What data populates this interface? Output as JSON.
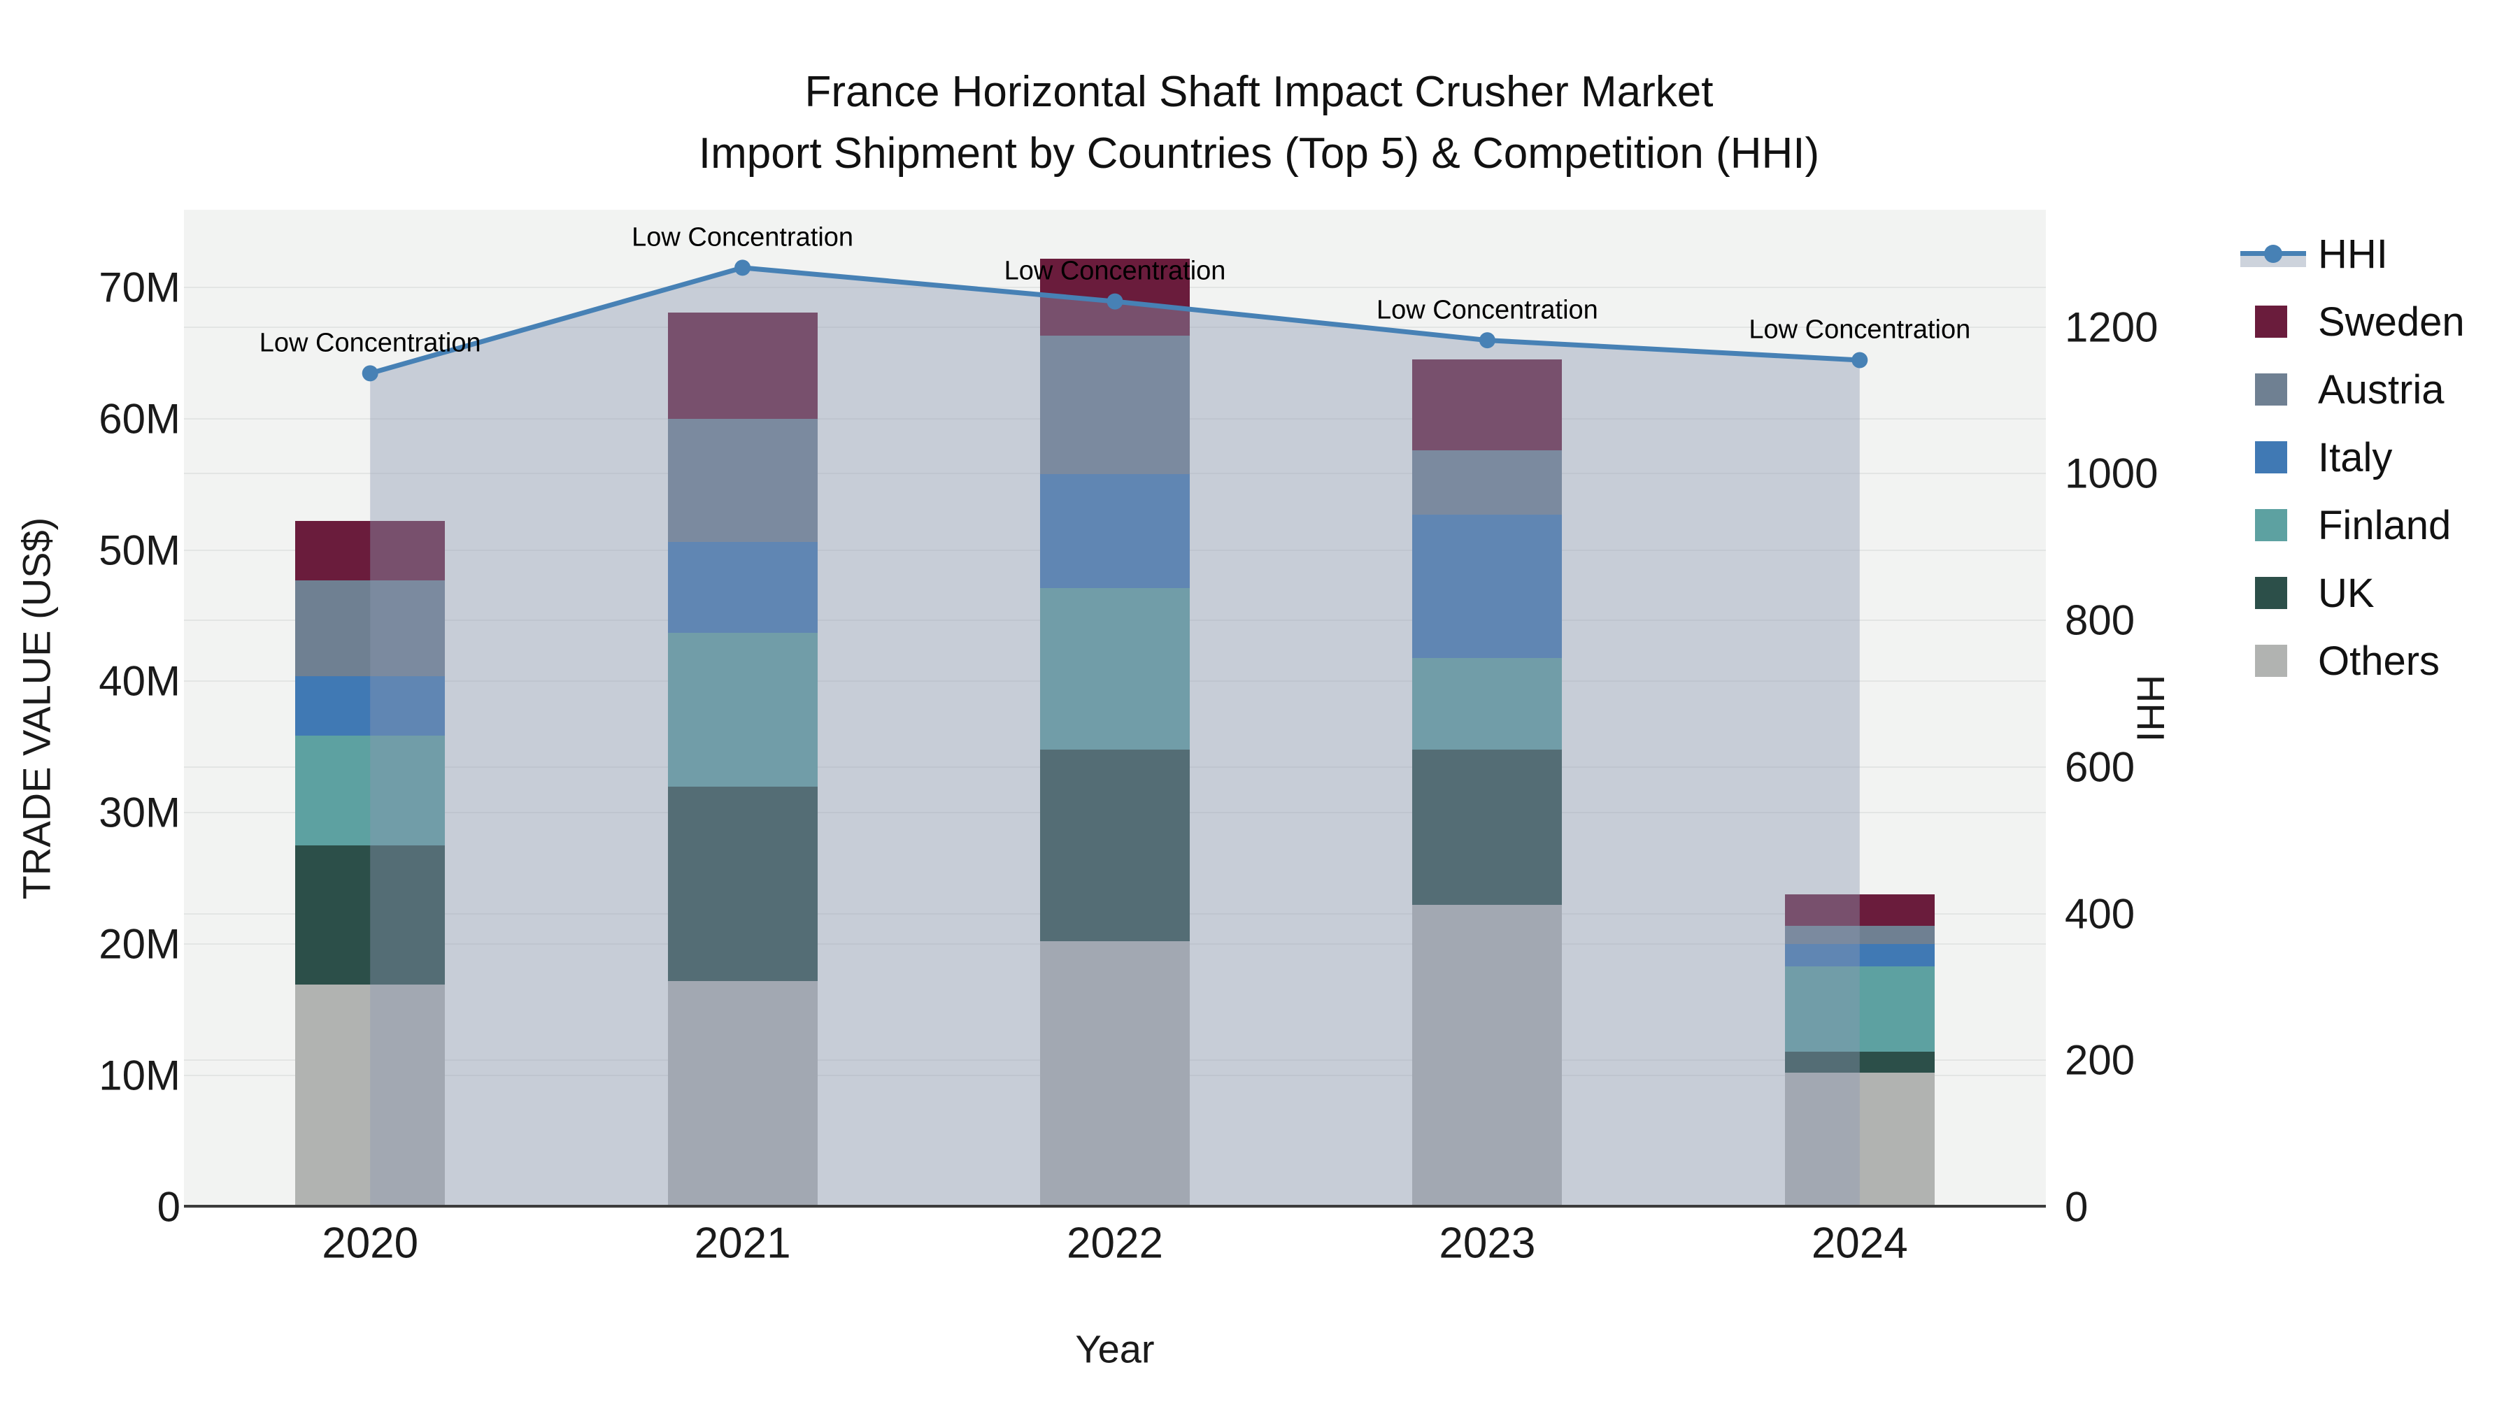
{
  "title": {
    "line1": "France Horizontal Shaft Impact Crusher Market",
    "line2": "Import Shipment by Countries (Top 5) & Competition (HHI)"
  },
  "chart_data": {
    "type": "combo: stacked bar + line(area)",
    "title_line1": "France Horizontal Shaft Impact Crusher Market",
    "title_line2": "Import Shipment by Countries (Top 5) & Competition (HHI)",
    "categories": [
      "2020",
      "2021",
      "2022",
      "2023",
      "2024"
    ],
    "series": [
      {
        "name": "Others",
        "color": "#b1b3b1",
        "values": [
          16.9,
          17.2,
          20.2,
          23.0,
          10.2
        ]
      },
      {
        "name": "UK",
        "color": "#2c4f49",
        "values": [
          10.6,
          14.8,
          14.6,
          11.8,
          1.6
        ]
      },
      {
        "name": "Finland",
        "color": "#5da1a1",
        "values": [
          8.4,
          11.7,
          12.3,
          7.0,
          6.5
        ]
      },
      {
        "name": "Italy",
        "color": "#4079b4",
        "values": [
          4.5,
          6.9,
          8.7,
          10.9,
          1.7
        ]
      },
      {
        "name": "Austria",
        "color": "#6f8092",
        "values": [
          7.3,
          9.4,
          10.5,
          4.9,
          1.4
        ]
      },
      {
        "name": "Sweden",
        "color": "#6a1c3c",
        "values": [
          4.5,
          8.1,
          5.9,
          6.9,
          2.4
        ]
      }
    ],
    "stack_order": "bottom to top: Others, UK, Finland, Italy, Austria, Sweden",
    "bar_totals_musd": [
      52.2,
      68.1,
      72.2,
      64.5,
      23.8
    ],
    "hhi_line": {
      "name": "HHI",
      "color": "#4781b5",
      "area_fill": "rgba(140,152,178,0.42)",
      "values": [
        1137,
        1281,
        1235,
        1182,
        1155
      ]
    },
    "annotations": [
      "Low Concentration",
      "Low Concentration",
      "Low Concentration",
      "Low Concentration",
      "Low Concentration"
    ],
    "axes": {
      "x": {
        "title": "Year"
      },
      "y_left": {
        "title": "TRADE VALUE (US$)",
        "range": [
          0,
          75.9
        ],
        "tick_values": [
          0,
          10,
          20,
          30,
          40,
          50,
          60,
          70
        ],
        "tick_labels": [
          "0",
          "10M",
          "20M",
          "30M",
          "40M",
          "50M",
          "60M",
          "70M"
        ]
      },
      "y_right": {
        "title": "HHI",
        "range": [
          0,
          1360
        ],
        "tick_values": [
          0,
          200,
          400,
          600,
          800,
          1000,
          1200
        ],
        "tick_labels": [
          "0",
          "200",
          "400",
          "600",
          "800",
          "1000",
          "1200"
        ]
      }
    },
    "legend": [
      {
        "id": "hhi",
        "label": "HHI",
        "kind": "line"
      },
      {
        "id": "sweden",
        "label": "Sweden",
        "kind": "swatch",
        "color": "#6a1c3c"
      },
      {
        "id": "austria",
        "label": "Austria",
        "kind": "swatch",
        "color": "#6f8092"
      },
      {
        "id": "italy",
        "label": "Italy",
        "kind": "swatch",
        "color": "#4079b4"
      },
      {
        "id": "finland",
        "label": "Finland",
        "kind": "swatch",
        "color": "#5da1a1"
      },
      {
        "id": "uk",
        "label": "UK",
        "kind": "swatch",
        "color": "#2c4f49"
      },
      {
        "id": "others",
        "label": "Others",
        "kind": "swatch",
        "color": "#b1b3b1"
      }
    ],
    "legend_position": "right",
    "grid": "on",
    "plot_bg": "#f2f3f2"
  }
}
